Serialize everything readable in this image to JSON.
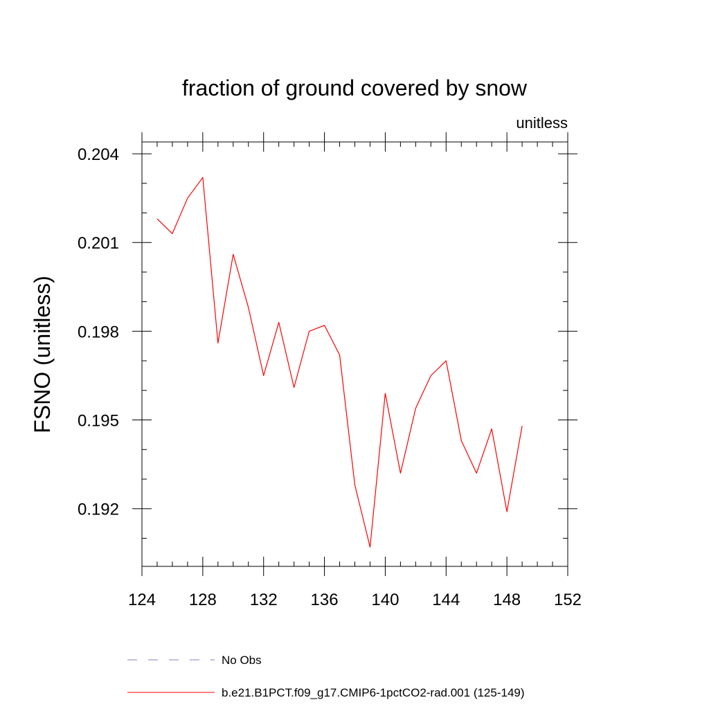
{
  "chart_data": {
    "type": "line",
    "title": "fraction of ground covered by snow",
    "units_label": "unitless",
    "ylabel": "FSNO  (unitless)",
    "xlabel": "",
    "xlim": [
      124,
      152
    ],
    "ylim": [
      0.19005,
      0.2044
    ],
    "x_ticks": [
      124,
      128,
      132,
      136,
      140,
      144,
      148,
      152
    ],
    "x_tick_labels": [
      "124",
      "128",
      "132",
      "136",
      "140",
      "144",
      "148",
      "152"
    ],
    "x_minor_step": 1,
    "y_ticks": [
      0.192,
      0.195,
      0.198,
      0.201,
      0.204
    ],
    "y_tick_labels": [
      "0.192",
      "0.195",
      "0.198",
      "0.201",
      "0.204"
    ],
    "y_minor_step": 0.001,
    "grid": false,
    "legend_position": "bottom",
    "series": [
      {
        "name": "b.e21.B1PCT.f09_g17.CMIP6-1pctCO2-rad.001 (125-149)",
        "color": "#ff0000",
        "style": "solid",
        "x": [
          125,
          126,
          127,
          128,
          129,
          130,
          131,
          132,
          133,
          134,
          135,
          136,
          137,
          138,
          139,
          140,
          141,
          142,
          143,
          144,
          145,
          146,
          147,
          148,
          149
        ],
        "y": [
          0.2018,
          0.2013,
          0.2025,
          0.2032,
          0.1976,
          0.2006,
          0.1988,
          0.1965,
          0.1983,
          0.1961,
          0.198,
          0.1982,
          0.1972,
          0.1928,
          0.1907,
          0.1959,
          0.1932,
          0.1954,
          0.1965,
          0.197,
          0.1943,
          0.1932,
          0.1947,
          0.1919,
          0.1948
        ]
      }
    ],
    "legend": [
      {
        "label": "No Obs",
        "color": "#8080c0",
        "style": "dashed"
      },
      {
        "label": "b.e21.B1PCT.f09_g17.CMIP6-1pctCO2-rad.001 (125-149)",
        "color": "#ff0000",
        "style": "solid"
      }
    ]
  }
}
